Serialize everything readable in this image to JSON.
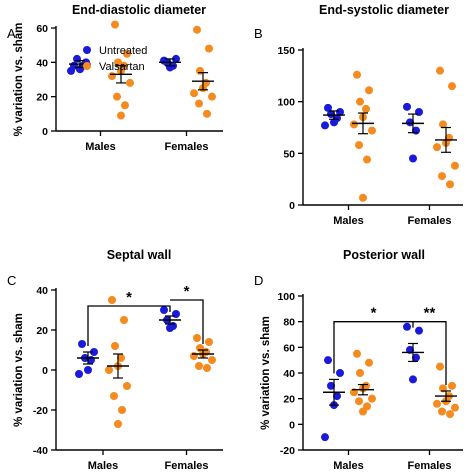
{
  "colors": {
    "untreated": "#1a1adb",
    "valsartan": "#f58a1e"
  },
  "legend": [
    {
      "key": "untreated",
      "label": "Untreated"
    },
    {
      "key": "valsartan",
      "label": "Valsartan"
    }
  ],
  "chart_data": [
    {
      "panel": "A",
      "type": "scatter",
      "title": "End-diastolic diameter",
      "ylabel": "% variation vs. sham",
      "categories": [
        "Males",
        "Females"
      ],
      "ylim": [
        0,
        60
      ],
      "yticks": [
        0,
        20,
        40,
        60
      ],
      "series": [
        {
          "name": "Untreated",
          "group": "Males",
          "mean": 39,
          "sem": 2,
          "points": [
            38,
            40,
            42,
            38,
            36,
            35
          ]
        },
        {
          "name": "Valsartan",
          "group": "Males",
          "mean": 33,
          "sem": 5,
          "points": [
            62,
            45,
            40,
            38,
            35,
            32,
            28,
            20,
            15,
            9
          ]
        },
        {
          "name": "Untreated",
          "group": "Females",
          "mean": 40,
          "sem": 2,
          "points": [
            41,
            42,
            40,
            38,
            37
          ]
        },
        {
          "name": "Valsartan",
          "group": "Females",
          "mean": 29,
          "sem": 5,
          "points": [
            59,
            48,
            35,
            28,
            25,
            22,
            20,
            16,
            10
          ]
        }
      ]
    },
    {
      "panel": "B",
      "type": "scatter",
      "title": "End-systolic diameter",
      "ylabel": "",
      "categories": [
        "Males",
        "Females"
      ],
      "ylim": [
        0,
        150
      ],
      "yticks": [
        0,
        50,
        100,
        150
      ],
      "series": [
        {
          "name": "Untreated",
          "group": "Males",
          "mean": 87,
          "sem": 4,
          "points": [
            94,
            90,
            88,
            84,
            80,
            77
          ]
        },
        {
          "name": "Valsartan",
          "group": "Males",
          "mean": 79,
          "sem": 10,
          "points": [
            126,
            111,
            100,
            93,
            85,
            78,
            72,
            58,
            44,
            7
          ]
        },
        {
          "name": "Untreated",
          "group": "Females",
          "mean": 79,
          "sem": 9,
          "points": [
            95,
            90,
            80,
            72,
            45
          ]
        },
        {
          "name": "Valsartan",
          "group": "Females",
          "mean": 63,
          "sem": 12,
          "points": [
            130,
            115,
            78,
            65,
            60,
            56,
            38,
            28,
            20
          ]
        }
      ]
    },
    {
      "panel": "C",
      "type": "scatter",
      "title": "Septal wall",
      "ylabel": "% variation vs. sham",
      "categories": [
        "Males",
        "Females"
      ],
      "ylim": [
        -40,
        40
      ],
      "yticks": [
        -40,
        -20,
        0,
        20,
        40
      ],
      "series": [
        {
          "name": "Untreated",
          "group": "Males",
          "mean": 6,
          "sem": 3,
          "points": [
            13,
            9,
            6,
            5,
            0,
            -2
          ]
        },
        {
          "name": "Valsartan",
          "group": "Males",
          "mean": 2,
          "sem": 6,
          "points": [
            35,
            25,
            12,
            6,
            2,
            0,
            -8,
            -13,
            -20,
            -27
          ]
        },
        {
          "name": "Untreated",
          "group": "Females",
          "mean": 25,
          "sem": 2,
          "points": [
            30,
            28,
            25,
            22,
            21
          ]
        },
        {
          "name": "Valsartan",
          "group": "Females",
          "mean": 8,
          "sem": 2,
          "points": [
            16,
            14,
            11,
            9,
            8,
            7,
            5,
            2,
            1
          ]
        }
      ],
      "significance": [
        {
          "label": "*",
          "between": [
            "Males",
            "Females"
          ],
          "y": 32
        },
        {
          "label": "*",
          "between": [
            "Females Untreated",
            "Females Valsartan"
          ],
          "y": 35
        }
      ]
    },
    {
      "panel": "D",
      "type": "scatter",
      "title": "Posterior wall",
      "ylabel": "% variation vs. sham",
      "categories": [
        "Males",
        "Females"
      ],
      "ylim": [
        -20,
        100
      ],
      "yticks": [
        -20,
        0,
        20,
        40,
        60,
        80,
        100
      ],
      "series": [
        {
          "name": "Untreated",
          "group": "Males",
          "mean": 25,
          "sem": 10,
          "points": [
            50,
            40,
            30,
            22,
            15,
            -10
          ]
        },
        {
          "name": "Valsartan",
          "group": "Males",
          "mean": 27,
          "sem": 4,
          "points": [
            55,
            48,
            40,
            30,
            28,
            25,
            20,
            18,
            14,
            10
          ]
        },
        {
          "name": "Untreated",
          "group": "Females",
          "mean": 56,
          "sem": 7,
          "points": [
            76,
            73,
            58,
            52,
            35
          ]
        },
        {
          "name": "Valsartan",
          "group": "Females",
          "mean": 22,
          "sem": 4,
          "points": [
            45,
            30,
            28,
            22,
            18,
            16,
            13,
            10,
            8
          ]
        }
      ],
      "significance": [
        {
          "label": "*",
          "between": [
            "Males",
            "Females"
          ],
          "y": 80
        },
        {
          "label": "**",
          "between": [
            "Females Untreated",
            "Females Valsartan"
          ],
          "y": 80
        }
      ]
    }
  ]
}
